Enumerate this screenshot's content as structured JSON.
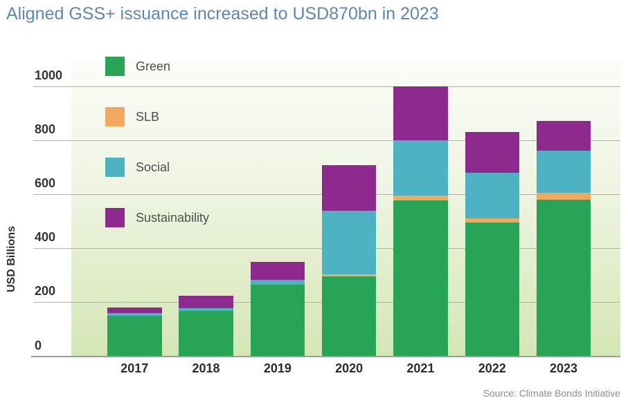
{
  "title": "Aligned GSS+ issuance increased to USD870bn in 2023",
  "y_axis_title": "USD Billions",
  "source": "Source: Climate Bonds Initiative",
  "chart_data": {
    "type": "bar",
    "stacked": true,
    "title": "Aligned GSS+ issuance increased to USD870bn in 2023",
    "xlabel": "",
    "ylabel": "USD Billions",
    "ylim": [
      0,
      1000
    ],
    "yticks": [
      0,
      200,
      400,
      600,
      800,
      1000
    ],
    "grid": true,
    "legend_position": "top-left-vertical",
    "categories": [
      "2017",
      "2018",
      "2019",
      "2020",
      "2021",
      "2022",
      "2023"
    ],
    "series": [
      {
        "name": "Green",
        "color": "#28a457",
        "values": [
          150,
          167,
          265,
          296,
          577,
          494,
          580
        ]
      },
      {
        "name": "SLB",
        "color": "#f4a75f",
        "values": [
          0,
          0,
          0,
          6,
          17,
          17,
          25
        ]
      },
      {
        "name": "Social",
        "color": "#4db2c1",
        "values": [
          10,
          11,
          17,
          236,
          206,
          168,
          155
        ]
      },
      {
        "name": "Sustainability",
        "color": "#8e2a8d",
        "values": [
          20,
          45,
          68,
          169,
          199,
          150,
          110
        ]
      }
    ],
    "totals": [
      180,
      223,
      350,
      707,
      999,
      829,
      870
    ]
  },
  "colors": {
    "title_text": "#5d87b2",
    "gridline": "#b0b0b0",
    "axis_line": "#9b9b9b",
    "tick_text": "#333333",
    "source_text": "#8c8c8c",
    "plot_bg_top": "#fbfcf8",
    "plot_bg_bottom": "#d4e6b4"
  }
}
